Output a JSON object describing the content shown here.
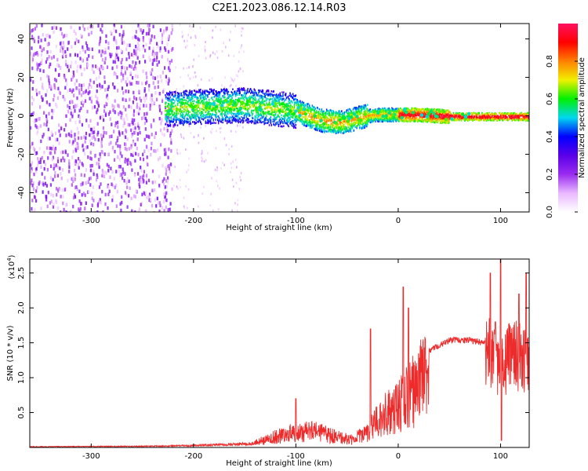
{
  "figure": {
    "title": "C2E1.2023.086.12.14.R03"
  },
  "chart_data": [
    {
      "type": "heatmap",
      "xlabel": "Height of straight line (km)",
      "ylabel": "Frequency (Hz)",
      "xlim": [
        -360,
        128
      ],
      "ylim": [
        -50,
        48
      ],
      "x_ticks": [
        -300,
        -200,
        -100,
        0,
        100
      ],
      "y_ticks": [
        -40,
        -20,
        0,
        20,
        40
      ],
      "colorbar": {
        "label": "Normalized spectral amplitude",
        "range": [
          0,
          1
        ],
        "ticks": [
          0.0,
          0.2,
          0.4,
          0.6,
          0.8
        ],
        "colormap": [
          "#ffffff",
          "#e9b8ff",
          "#9a2cf0",
          "#5a00e8",
          "#0000ff",
          "#00d8f0",
          "#00f000",
          "#f0f000",
          "#ff8000",
          "#ff0000",
          "#ff1060"
        ]
      },
      "ridge": {
        "x": [
          -225,
          -200,
          -150,
          -100,
          -75,
          -55,
          -35,
          -20,
          0,
          20,
          50,
          100,
          128
        ],
        "y": [
          4,
          5,
          6,
          3,
          -2,
          -3,
          0,
          1,
          1,
          1,
          0,
          0,
          0
        ]
      },
      "noise_region_end_x": -220,
      "grid": false
    },
    {
      "type": "line",
      "xlabel": "Height of straight line (km)",
      "ylabel": "SNR (10 * v/v)",
      "y_multiplier": "(x10",
      "y_multiplier_exp": "4",
      "y_multiplier_close": ")",
      "xlim": [
        -360,
        128
      ],
      "ylim": [
        0,
        27000
      ],
      "x_ticks": [
        -300,
        -200,
        -100,
        0,
        100
      ],
      "y_ticks": [
        0.5,
        1.0,
        1.5,
        2.0,
        2.5
      ],
      "y_tick_scale": 10000,
      "color": "#ee2b2b",
      "envelope": {
        "x": [
          -360,
          -250,
          -200,
          -140,
          -120,
          -100,
          -80,
          -60,
          -45,
          -30,
          -15,
          0,
          15,
          30,
          50,
          70,
          90,
          100,
          110,
          128
        ],
        "y": [
          200,
          300,
          500,
          1000,
          2000,
          3000,
          3000,
          2000,
          1500,
          3000,
          6000,
          8000,
          11000,
          14000,
          15500,
          15500,
          15000,
          12000,
          15000,
          14000
        ]
      },
      "spikes": {
        "x": [
          -100,
          5,
          10,
          -27,
          90,
          95,
          100,
          101,
          118,
          125
        ],
        "y": [
          7000,
          23000,
          20000,
          17000,
          25000,
          18000,
          27000,
          1000,
          22000,
          25000
        ]
      },
      "grid": false
    }
  ]
}
